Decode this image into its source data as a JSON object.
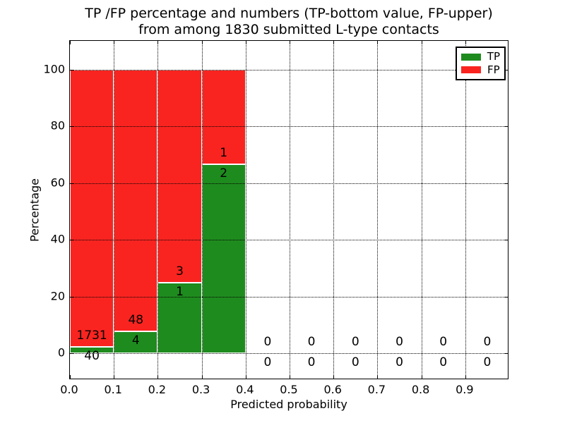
{
  "chart_data": {
    "type": "bar",
    "stacked": true,
    "title": "TP /FP percentage and numbers (TP-bottom value, FP-upper)\nfrom among 1830 submitted L-type contacts",
    "title_line1": "TP /FP percentage and numbers (TP-bottom value, FP-upper)",
    "title_line2": "from among 1830 submitted L-type contacts",
    "xlabel": "Predicted probability",
    "ylabel": "Percentage",
    "xlim": [
      0.0,
      1.0
    ],
    "ylim": [
      -10,
      110
    ],
    "x_tick_labels": [
      "0.0",
      "0.1",
      "0.2",
      "0.3",
      "0.4",
      "0.5",
      "0.6",
      "0.7",
      "0.8",
      "0.9"
    ],
    "y_tick_labels": [
      "0",
      "20",
      "40",
      "60",
      "80",
      "100"
    ],
    "y_tick_values": [
      0,
      20,
      40,
      60,
      80,
      100
    ],
    "bin_width": 0.1,
    "categories": [
      "0.0-0.1",
      "0.1-0.2",
      "0.2-0.3",
      "0.3-0.4",
      "0.4-0.5",
      "0.5-0.6",
      "0.6-0.7",
      "0.7-0.8",
      "0.8-0.9",
      "0.9-1.0"
    ],
    "series": [
      {
        "name": "TP",
        "color": "#1e8b1e",
        "counts": [
          40,
          4,
          1,
          2,
          0,
          0,
          0,
          0,
          0,
          0
        ]
      },
      {
        "name": "FP",
        "color": "#f92420",
        "counts": [
          1731,
          48,
          3,
          1,
          0,
          0,
          0,
          0,
          0,
          0
        ]
      }
    ],
    "total_contacts": 1830,
    "bar_edge_color": "#ffffff",
    "grid": "dotted",
    "legend_position": "upper right",
    "note": "bars show TP% (bottom, green) and FP% (top, red) stacked to 100%; labels are raw counts: FP above green top, TP below"
  }
}
